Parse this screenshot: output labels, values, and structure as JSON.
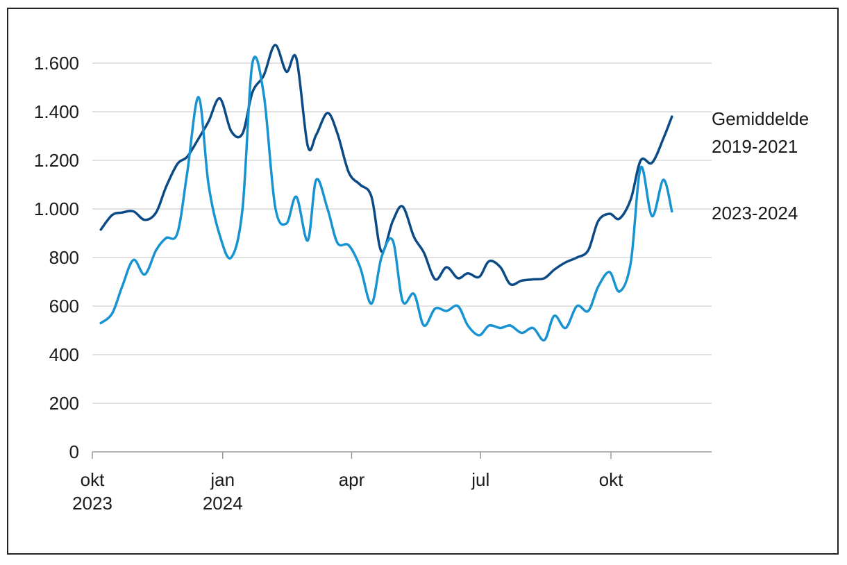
{
  "chart_data": {
    "type": "line",
    "title": "",
    "xlabel": "",
    "ylabel": "",
    "ylim": [
      0,
      1700
    ],
    "yticks": [
      0,
      200,
      400,
      600,
      800,
      1000,
      1200,
      1400,
      1600
    ],
    "ytick_labels": [
      "0",
      "200",
      "400",
      "600",
      "800",
      "1.000",
      "1.200",
      "1.400",
      "1.600"
    ],
    "xticks": [
      {
        "date": "2023-10-01",
        "label": [
          "okt",
          "2023"
        ]
      },
      {
        "date": "2024-01-01",
        "label": [
          "jan",
          "2024"
        ]
      },
      {
        "date": "2024-04-01",
        "label": [
          "apr"
        ]
      },
      {
        "date": "2024-07-01",
        "label": [
          "jul"
        ]
      },
      {
        "date": "2024-10-01",
        "label": [
          "okt"
        ]
      }
    ],
    "grid": true,
    "legend_position": "right, at end of lines",
    "series": [
      {
        "name": "Gemiddelde 2019-2021",
        "name_lines": [
          "Gemiddelde",
          "2019-2021"
        ],
        "color": "#0b4a85",
        "points": [
          [
            "2023-10-07",
            915
          ],
          [
            "2023-10-15",
            975
          ],
          [
            "2023-10-22",
            985
          ],
          [
            "2023-10-30",
            990
          ],
          [
            "2023-11-07",
            955
          ],
          [
            "2023-11-15",
            985
          ],
          [
            "2023-11-22",
            1090
          ],
          [
            "2023-11-30",
            1185
          ],
          [
            "2023-12-07",
            1215
          ],
          [
            "2023-12-15",
            1290
          ],
          [
            "2023-12-22",
            1360
          ],
          [
            "2023-12-30",
            1455
          ],
          [
            "2024-01-07",
            1320
          ],
          [
            "2024-01-15",
            1310
          ],
          [
            "2024-01-22",
            1480
          ],
          [
            "2024-01-30",
            1550
          ],
          [
            "2024-02-07",
            1675
          ],
          [
            "2024-02-15",
            1565
          ],
          [
            "2024-02-22",
            1620
          ],
          [
            "2024-03-01",
            1260
          ],
          [
            "2024-03-07",
            1305
          ],
          [
            "2024-03-15",
            1395
          ],
          [
            "2024-03-22",
            1310
          ],
          [
            "2024-03-30",
            1150
          ],
          [
            "2024-04-07",
            1100
          ],
          [
            "2024-04-15",
            1050
          ],
          [
            "2024-04-22",
            825
          ],
          [
            "2024-04-30",
            950
          ],
          [
            "2024-05-07",
            1010
          ],
          [
            "2024-05-15",
            885
          ],
          [
            "2024-05-22",
            820
          ],
          [
            "2024-05-30",
            710
          ],
          [
            "2024-06-07",
            760
          ],
          [
            "2024-06-15",
            715
          ],
          [
            "2024-06-22",
            735
          ],
          [
            "2024-06-30",
            720
          ],
          [
            "2024-07-07",
            785
          ],
          [
            "2024-07-15",
            760
          ],
          [
            "2024-07-22",
            690
          ],
          [
            "2024-07-30",
            705
          ],
          [
            "2024-08-07",
            710
          ],
          [
            "2024-08-15",
            715
          ],
          [
            "2024-08-22",
            750
          ],
          [
            "2024-08-30",
            780
          ],
          [
            "2024-09-07",
            800
          ],
          [
            "2024-09-15",
            830
          ],
          [
            "2024-09-22",
            950
          ],
          [
            "2024-09-30",
            980
          ],
          [
            "2024-10-07",
            960
          ],
          [
            "2024-10-15",
            1040
          ],
          [
            "2024-10-22",
            1200
          ],
          [
            "2024-10-30",
            1190
          ],
          [
            "2024-11-07",
            1290
          ],
          [
            "2024-11-13",
            1380
          ]
        ]
      },
      {
        "name": "2023-2024",
        "name_lines": [
          "2023-2024"
        ],
        "color": "#1793d1",
        "points": [
          [
            "2023-10-07",
            530
          ],
          [
            "2023-10-15",
            570
          ],
          [
            "2023-10-22",
            680
          ],
          [
            "2023-10-30",
            790
          ],
          [
            "2023-11-07",
            730
          ],
          [
            "2023-11-15",
            830
          ],
          [
            "2023-11-22",
            880
          ],
          [
            "2023-11-30",
            900
          ],
          [
            "2023-12-07",
            1150
          ],
          [
            "2023-12-15",
            1460
          ],
          [
            "2023-12-22",
            1100
          ],
          [
            "2023-12-30",
            890
          ],
          [
            "2024-01-07",
            800
          ],
          [
            "2024-01-15",
            1000
          ],
          [
            "2024-01-22",
            1600
          ],
          [
            "2024-01-30",
            1470
          ],
          [
            "2024-02-07",
            1010
          ],
          [
            "2024-02-15",
            940
          ],
          [
            "2024-02-22",
            1050
          ],
          [
            "2024-03-01",
            870
          ],
          [
            "2024-03-07",
            1120
          ],
          [
            "2024-03-15",
            1000
          ],
          [
            "2024-03-22",
            860
          ],
          [
            "2024-03-30",
            850
          ],
          [
            "2024-04-07",
            760
          ],
          [
            "2024-04-15",
            610
          ],
          [
            "2024-04-22",
            800
          ],
          [
            "2024-04-30",
            870
          ],
          [
            "2024-05-07",
            620
          ],
          [
            "2024-05-15",
            650
          ],
          [
            "2024-05-22",
            520
          ],
          [
            "2024-05-30",
            590
          ],
          [
            "2024-06-07",
            580
          ],
          [
            "2024-06-15",
            600
          ],
          [
            "2024-06-22",
            520
          ],
          [
            "2024-06-30",
            480
          ],
          [
            "2024-07-07",
            520
          ],
          [
            "2024-07-15",
            510
          ],
          [
            "2024-07-22",
            520
          ],
          [
            "2024-07-30",
            490
          ],
          [
            "2024-08-07",
            510
          ],
          [
            "2024-08-15",
            460
          ],
          [
            "2024-08-22",
            560
          ],
          [
            "2024-08-30",
            510
          ],
          [
            "2024-09-07",
            600
          ],
          [
            "2024-09-15",
            580
          ],
          [
            "2024-09-22",
            680
          ],
          [
            "2024-09-30",
            740
          ],
          [
            "2024-10-07",
            660
          ],
          [
            "2024-10-15",
            780
          ],
          [
            "2024-10-22",
            1170
          ],
          [
            "2024-10-30",
            970
          ],
          [
            "2024-11-07",
            1120
          ],
          [
            "2024-11-13",
            990
          ]
        ]
      }
    ]
  }
}
